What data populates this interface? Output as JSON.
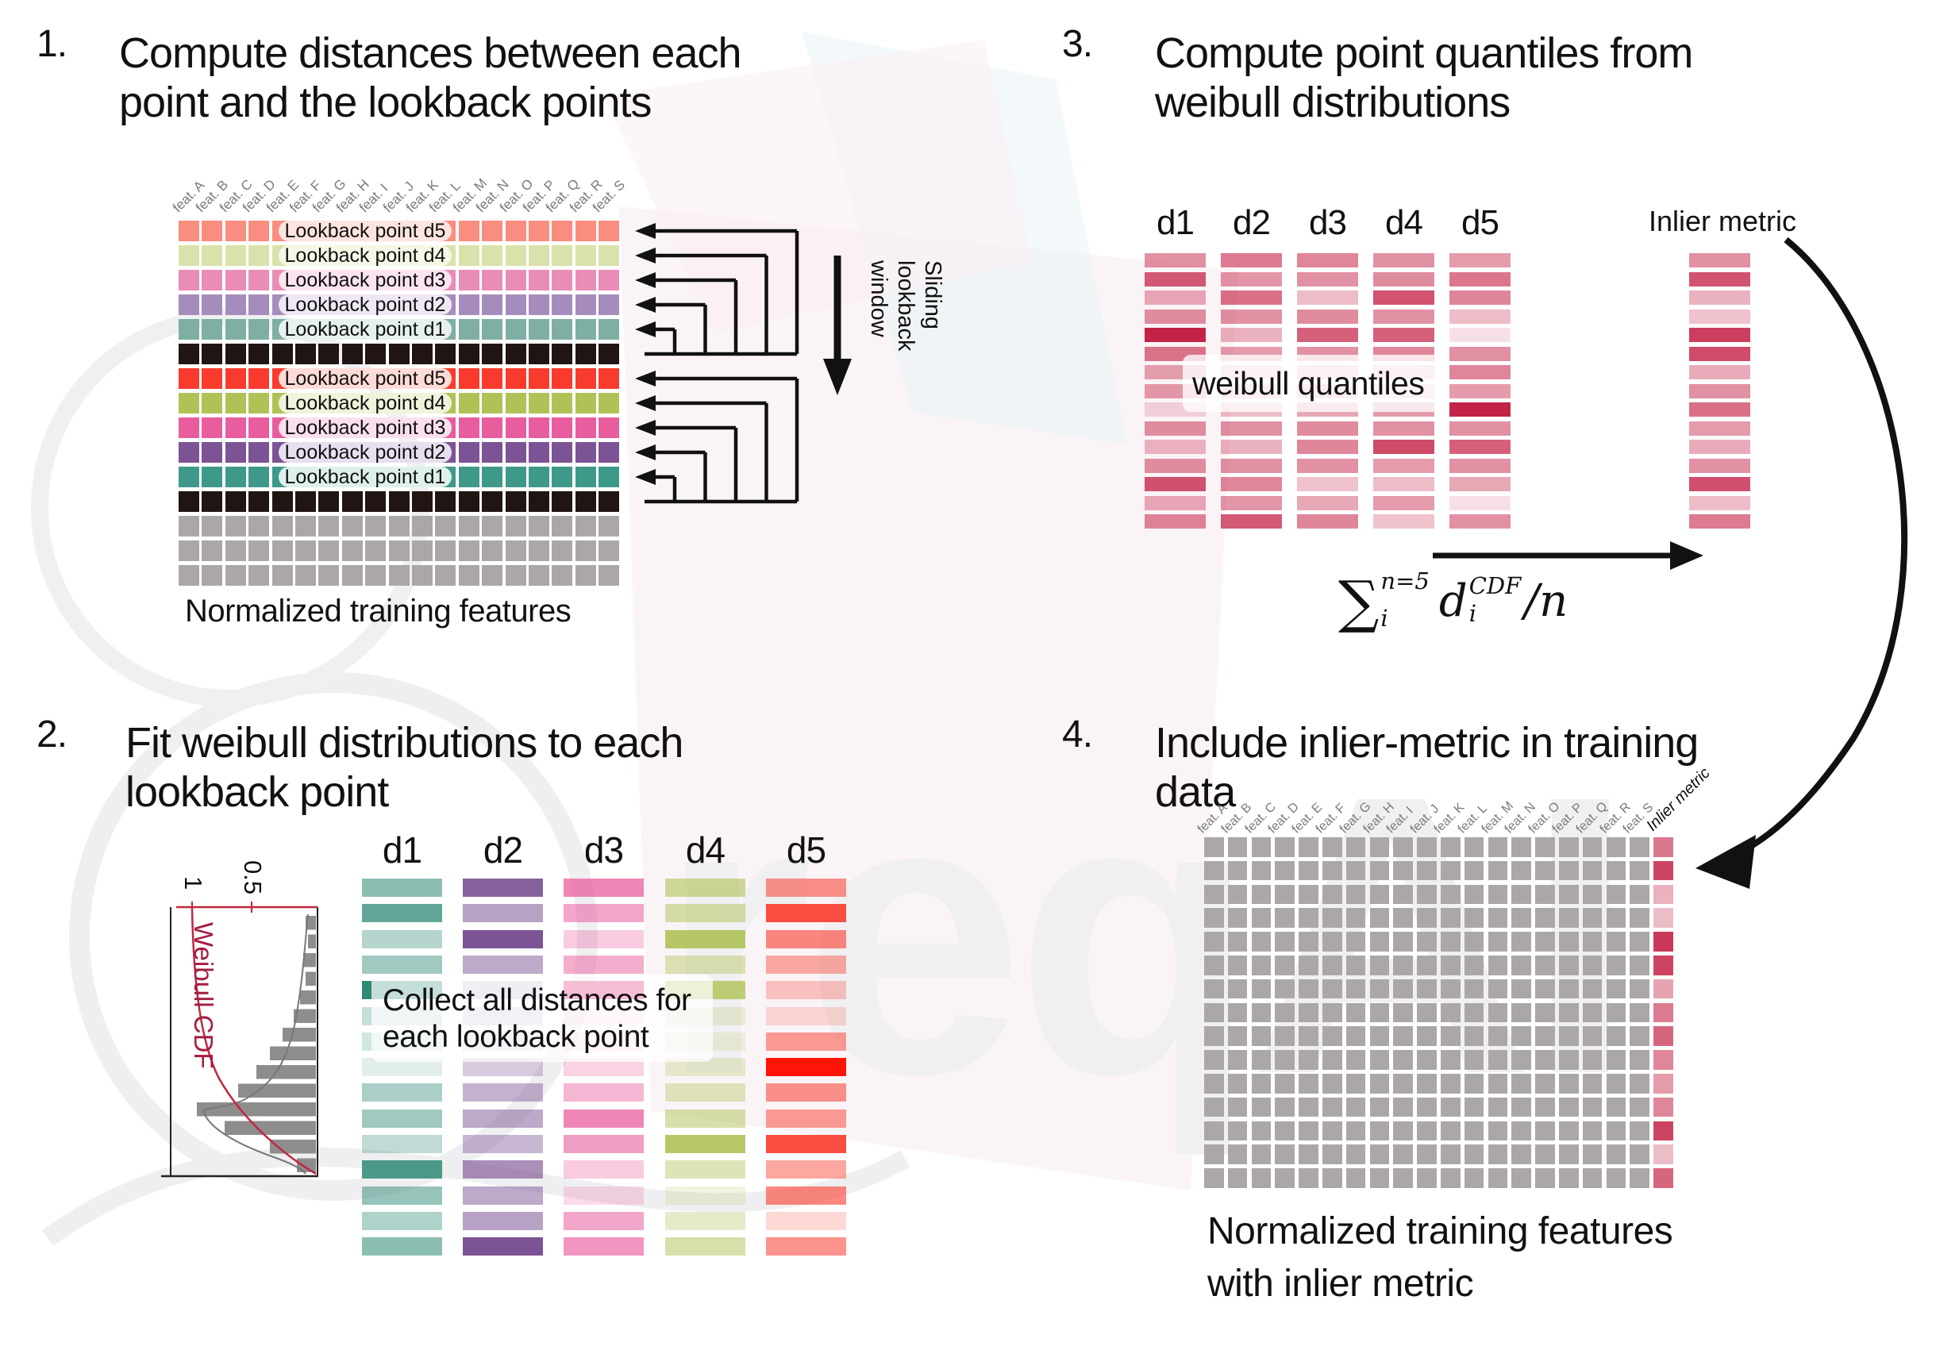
{
  "colors": {
    "salmon_m": "#F98D7F",
    "green_m": "#D9E2AA",
    "pink_m": "#E98CB6",
    "purple_m": "#A68CBC",
    "teal_m": "#7FAEA4",
    "black": "#201512",
    "red_v": "#F93B2D",
    "green_v": "#AFC255",
    "pink_v": "#E85D9E",
    "purple_v": "#7C5394",
    "teal_v": "#3F998A",
    "gray": "#ACA7A7",
    "crimson": "#C42347",
    "dark_red": "#A31D3F",
    "arrow": "#111111",
    "hist_bar": "#8f8c8c",
    "cdf_curve": "#C0273F",
    "density_curve": "#777777"
  },
  "features": [
    "feat. A",
    "feat. B",
    "feat. C",
    "feat. D",
    "feat. E",
    "feat. F",
    "feat. G",
    "feat. H",
    "feat. I",
    "feat. J",
    "feat. K",
    "feat. L",
    "feat. M",
    "feat. N",
    "feat. O",
    "feat. P",
    "feat. Q",
    "feat. R",
    "feat. S"
  ],
  "section1": {
    "num": "1.",
    "title1": "Compute distances between each",
    "title2": "point and the lookback points",
    "rows": [
      {
        "color": "salmon_m",
        "pill": "#fde4df",
        "label": "Lookback point d5"
      },
      {
        "color": "green_m",
        "pill": "#f5f8e6",
        "label": "Lookback point d4"
      },
      {
        "color": "pink_m",
        "pill": "#fbe4f0",
        "label": "Lookback point d3"
      },
      {
        "color": "purple_m",
        "pill": "#eee8f4",
        "label": "Lookback point d2"
      },
      {
        "color": "teal_m",
        "pill": "#e6f1ee",
        "label": "Lookback point d1"
      },
      {
        "color": "black"
      },
      {
        "color": "red_v",
        "pill": "#fedbd7",
        "label": "Lookback point d5"
      },
      {
        "color": "green_v",
        "pill": "#eef3da",
        "label": "Lookback point d4"
      },
      {
        "color": "pink_v",
        "pill": "#fbdfee",
        "label": "Lookback point d3"
      },
      {
        "color": "purple_v",
        "pill": "#e7dff0",
        "label": "Lookback point d2"
      },
      {
        "color": "teal_v",
        "pill": "#def0ec",
        "label": "Lookback point d1"
      },
      {
        "color": "black"
      },
      {
        "color": "gray"
      },
      {
        "color": "gray"
      },
      {
        "color": "gray"
      }
    ],
    "sliding_lines": [
      "Sliding",
      "lookback",
      "window"
    ],
    "caption": "Normalized training features"
  },
  "section2": {
    "num": "2.",
    "title1": "Fit weibull distributions to each",
    "title2": "lookback point",
    "overlay1": "Collect all distances for",
    "overlay2": "each lookback point",
    "cdf_plot": {
      "label": "Weibull CDF",
      "tick_1": "1",
      "tick_05": "0.5",
      "bars": [
        13,
        10,
        16,
        13,
        20,
        28,
        42,
        58,
        75,
        98,
        150,
        115,
        58,
        24
      ]
    },
    "columns": [
      {
        "label": "d1",
        "color": "#2E8876",
        "opacities": [
          0.55,
          0.75,
          0.35,
          0.45,
          1,
          0.28,
          0.22,
          0.14,
          0.4,
          0.45,
          0.3,
          0.85,
          0.5,
          0.38,
          0.55
        ]
      },
      {
        "label": "d2",
        "color": "#7C5394",
        "opacities": [
          0.92,
          0.55,
          1,
          0.5,
          0.38,
          0.3,
          0.25,
          0.3,
          0.45,
          0.5,
          0.42,
          0.65,
          0.5,
          0.55,
          1
        ]
      },
      {
        "label": "d3",
        "color": "#E85D9E",
        "opacities": [
          0.75,
          0.55,
          0.32,
          0.5,
          1,
          0.2,
          0.22,
          0.28,
          0.45,
          0.75,
          0.6,
          0.32,
          0.22,
          0.55,
          0.65
        ],
        "strong": {
          "row": 4,
          "color": "#D9136E"
        }
      },
      {
        "label": "d4",
        "color": "#AFC255",
        "opacities": [
          0.6,
          0.5,
          0.9,
          0.42,
          0.8,
          0.22,
          0.18,
          0.28,
          0.38,
          0.5,
          0.9,
          0.42,
          0.18,
          0.32,
          0.5
        ]
      },
      {
        "label": "d5",
        "color": "#F93B2D",
        "opacities": [
          0.55,
          0.9,
          0.6,
          0.42,
          0.28,
          0.18,
          0.5,
          1,
          0.55,
          0.5,
          0.9,
          0.45,
          0.6,
          0.2,
          0.55
        ],
        "strong": {
          "row": 7,
          "color": "#FF1407"
        }
      }
    ]
  },
  "section3": {
    "num": "3.",
    "title1": "Compute point quantiles from",
    "title2": "weibull distributions",
    "overlay": "weibull quantiles",
    "inlier_label": "Inlier metric",
    "columns": [
      {
        "label": "d1",
        "opacities": [
          0.5,
          0.75,
          0.38,
          0.5,
          1,
          0.62,
          0.42,
          0.45,
          0.18,
          0.5,
          0.32,
          0.5,
          0.78,
          0.38,
          0.55
        ]
      },
      {
        "label": "d2",
        "opacities": [
          0.6,
          0.48,
          0.65,
          0.5,
          0.35,
          0.45,
          0.28,
          0.32,
          0.3,
          0.5,
          0.35,
          0.5,
          0.55,
          0.48,
          0.75
        ]
      },
      {
        "label": "d3",
        "opacities": [
          0.55,
          0.5,
          0.3,
          0.52,
          0.72,
          0.5,
          0.3,
          0.35,
          0.4,
          0.52,
          0.55,
          0.5,
          0.28,
          0.4,
          0.55
        ]
      },
      {
        "label": "d4",
        "opacities": [
          0.5,
          0.52,
          0.78,
          0.5,
          0.72,
          0.55,
          0.3,
          0.24,
          0.45,
          0.5,
          0.82,
          0.45,
          0.3,
          0.45,
          0.28
        ]
      },
      {
        "label": "d5",
        "opacities": [
          0.45,
          0.62,
          0.55,
          0.3,
          0.14,
          0.5,
          0.55,
          0.45,
          1,
          0.5,
          0.72,
          0.5,
          0.4,
          0.14,
          0.5
        ]
      }
    ],
    "inlier_opacities": [
      0.5,
      0.78,
      0.35,
      0.28,
      0.88,
      0.82,
      0.38,
      0.5,
      0.65,
      0.45,
      0.38,
      0.5,
      0.8,
      0.3,
      0.6
    ],
    "formula": {
      "sigma": "∑",
      "upper": "n=5",
      "lower": "i",
      "dvar": "d",
      "d_sup": "CDF",
      "d_sub": "i",
      "tail": "/n"
    }
  },
  "section4": {
    "num": "4.",
    "title1": "Include inlier-metric in training",
    "title2": "data",
    "inlier_label": "Inlier metric",
    "inlier_opacities": [
      0.62,
      0.85,
      0.35,
      0.3,
      0.9,
      0.85,
      0.42,
      0.6,
      0.7,
      0.55,
      0.45,
      0.55,
      0.85,
      0.3,
      0.7
    ],
    "caption1": "Normalized training features",
    "caption2": "with inlier metric"
  },
  "watermark": {
    "text": "reqAI"
  }
}
